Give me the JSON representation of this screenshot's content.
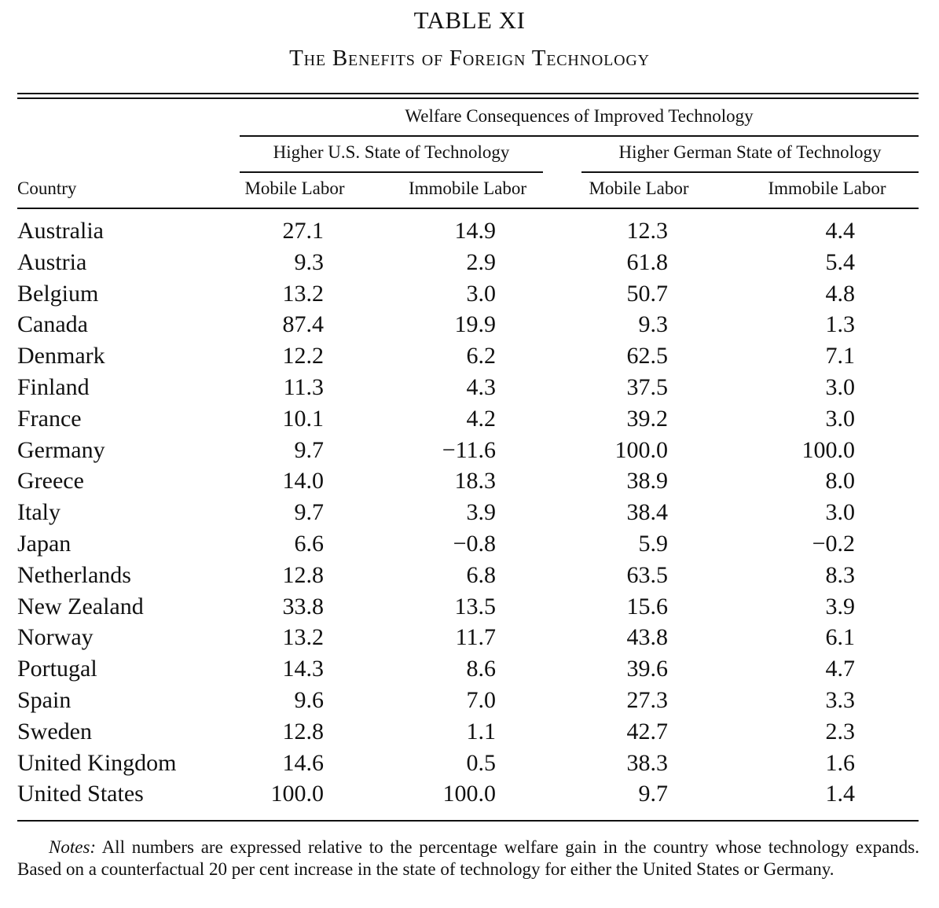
{
  "table": {
    "title": "TABLE XI",
    "subtitle": "The Benefits of Foreign Technology",
    "spanner": "Welfare Consequences of Improved Technology",
    "groups": [
      "Higher U.S. State of Technology",
      "Higher German State of Technology"
    ],
    "columns": [
      "Country",
      "Mobile Labor",
      "Immobile Labor",
      "Mobile Labor",
      "Immobile Labor"
    ],
    "rows": [
      {
        "country": "Australia",
        "values": [
          "27.1",
          "14.9",
          "12.3",
          "4.4"
        ]
      },
      {
        "country": "Austria",
        "values": [
          "9.3",
          "2.9",
          "61.8",
          "5.4"
        ]
      },
      {
        "country": "Belgium",
        "values": [
          "13.2",
          "3.0",
          "50.7",
          "4.8"
        ]
      },
      {
        "country": "Canada",
        "values": [
          "87.4",
          "19.9",
          "9.3",
          "1.3"
        ]
      },
      {
        "country": "Denmark",
        "values": [
          "12.2",
          "6.2",
          "62.5",
          "7.1"
        ]
      },
      {
        "country": "Finland",
        "values": [
          "11.3",
          "4.3",
          "37.5",
          "3.0"
        ]
      },
      {
        "country": "France",
        "values": [
          "10.1",
          "4.2",
          "39.2",
          "3.0"
        ]
      },
      {
        "country": "Germany",
        "values": [
          "9.7",
          "−11.6",
          "100.0",
          "100.0"
        ]
      },
      {
        "country": "Greece",
        "values": [
          "14.0",
          "18.3",
          "38.9",
          "8.0"
        ]
      },
      {
        "country": "Italy",
        "values": [
          "9.7",
          "3.9",
          "38.4",
          "3.0"
        ]
      },
      {
        "country": "Japan",
        "values": [
          "6.6",
          "−0.8",
          "5.9",
          "−0.2"
        ]
      },
      {
        "country": "Netherlands",
        "values": [
          "12.8",
          "6.8",
          "63.5",
          "8.3"
        ]
      },
      {
        "country": "New Zealand",
        "values": [
          "33.8",
          "13.5",
          "15.6",
          "3.9"
        ]
      },
      {
        "country": "Norway",
        "values": [
          "13.2",
          "11.7",
          "43.8",
          "6.1"
        ]
      },
      {
        "country": "Portugal",
        "values": [
          "14.3",
          "8.6",
          "39.6",
          "4.7"
        ]
      },
      {
        "country": "Spain",
        "values": [
          "9.6",
          "7.0",
          "27.3",
          "3.3"
        ]
      },
      {
        "country": "Sweden",
        "values": [
          "12.8",
          "1.1",
          "42.7",
          "2.3"
        ]
      },
      {
        "country": "United Kingdom",
        "values": [
          "14.6",
          "0.5",
          "38.3",
          "1.6"
        ]
      },
      {
        "country": "United States",
        "values": [
          "100.0",
          "100.0",
          "9.7",
          "1.4"
        ]
      }
    ],
    "notes_label": "Notes:",
    "notes_text": " All numbers are expressed relative to the percentage welfare gain in the country whose technology expands. Based on a counterfactual 20 per cent increase in the state of technology for either the United States or Germany."
  }
}
